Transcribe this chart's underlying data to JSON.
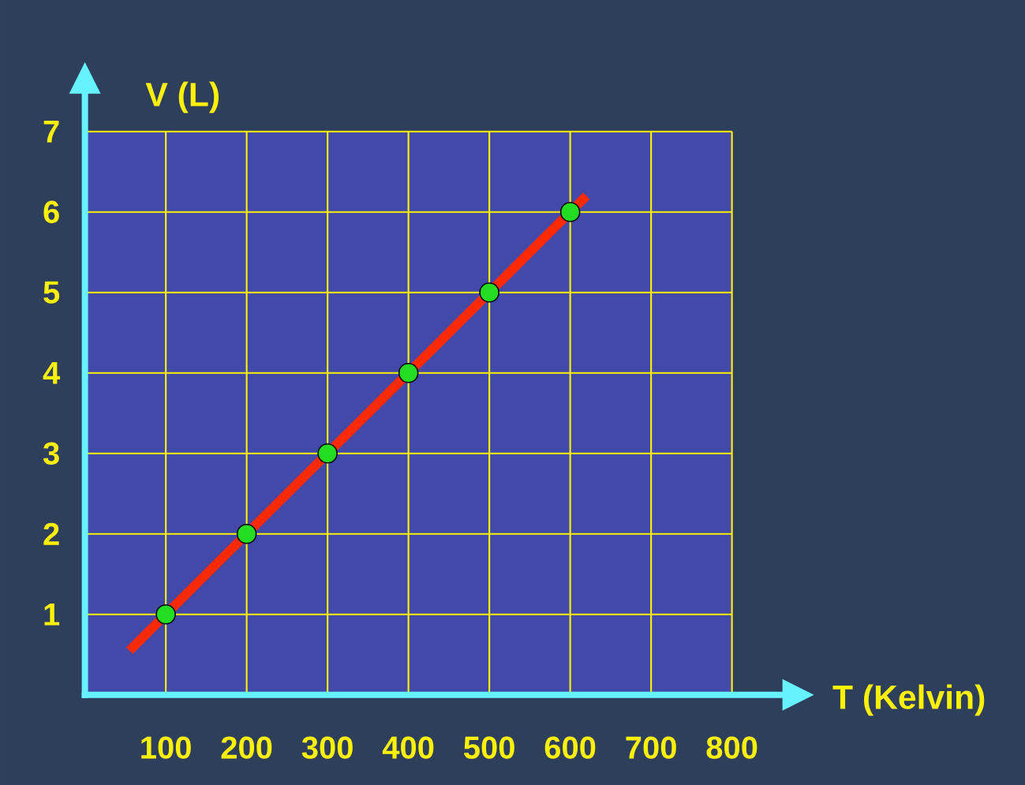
{
  "chart_data": {
    "type": "scatter",
    "xlabel": "T (Kelvin)",
    "ylabel": "V (L)",
    "xlim": [
      0,
      800
    ],
    "ylim": [
      0,
      7
    ],
    "xticks": [
      100,
      200,
      300,
      400,
      500,
      600,
      700,
      800
    ],
    "yticks": [
      1,
      2,
      3,
      4,
      5,
      6,
      7
    ],
    "grid": true,
    "series": [
      {
        "marker": "circle",
        "color": "#22dd22",
        "x": [
          100,
          200,
          300,
          400,
          500,
          600
        ],
        "values": [
          1,
          2,
          3,
          4,
          5,
          6
        ]
      },
      {
        "type": "line",
        "marker": "none",
        "color": "#ff2a00",
        "x": [
          55,
          620
        ],
        "values": [
          0.55,
          6.2
        ]
      }
    ]
  }
}
